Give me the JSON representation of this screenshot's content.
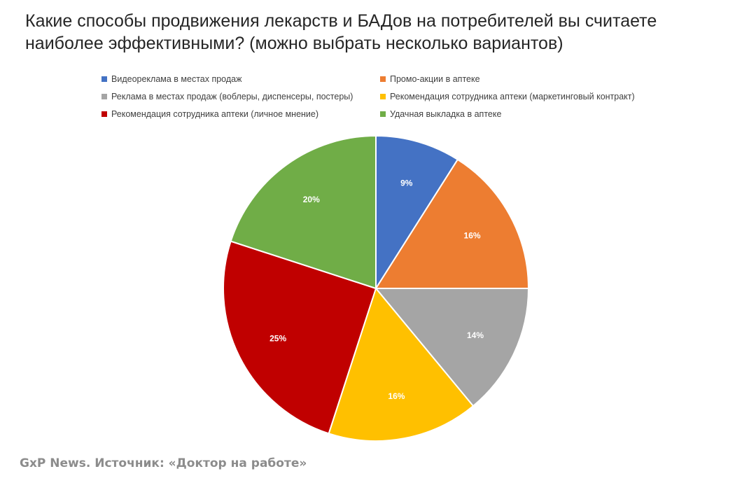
{
  "title": "Какие способы продвижения лекарств и БАДов на потребителей вы считаете наиболее эффективными? (можно выбрать несколько вариантов)",
  "source": "GxP News. Источник: «Доктор на работе»",
  "chart_data": {
    "type": "pie",
    "title": "Какие способы продвижения лекарств и БАДов на потребителей вы считаете наиболее эффективными? (можно выбрать несколько вариантов)",
    "legend_position": "top",
    "slices": [
      {
        "name": "Видеореклама в местах продаж",
        "value": 9,
        "label": "9%",
        "color": "#4472c4"
      },
      {
        "name": "Промо-акции в аптеке",
        "value": 16,
        "label": "16%",
        "color": "#ed7d31"
      },
      {
        "name": "Реклама в местах продаж (воблеры, диспенсеры, постеры)",
        "value": 14,
        "label": "14%",
        "color": "#a5a5a5"
      },
      {
        "name": "Рекомендация сотрудника аптеки (маркетинговый контракт)",
        "value": 16,
        "label": "16%",
        "color": "#ffc000"
      },
      {
        "name": "Рекомендация сотрудника аптеки (личное мнение)",
        "value": 25,
        "label": "25%",
        "color": "#c00000"
      },
      {
        "name": "Удачная выкладка в аптеке",
        "value": 20,
        "label": "20%",
        "color": "#70ad47"
      }
    ]
  }
}
